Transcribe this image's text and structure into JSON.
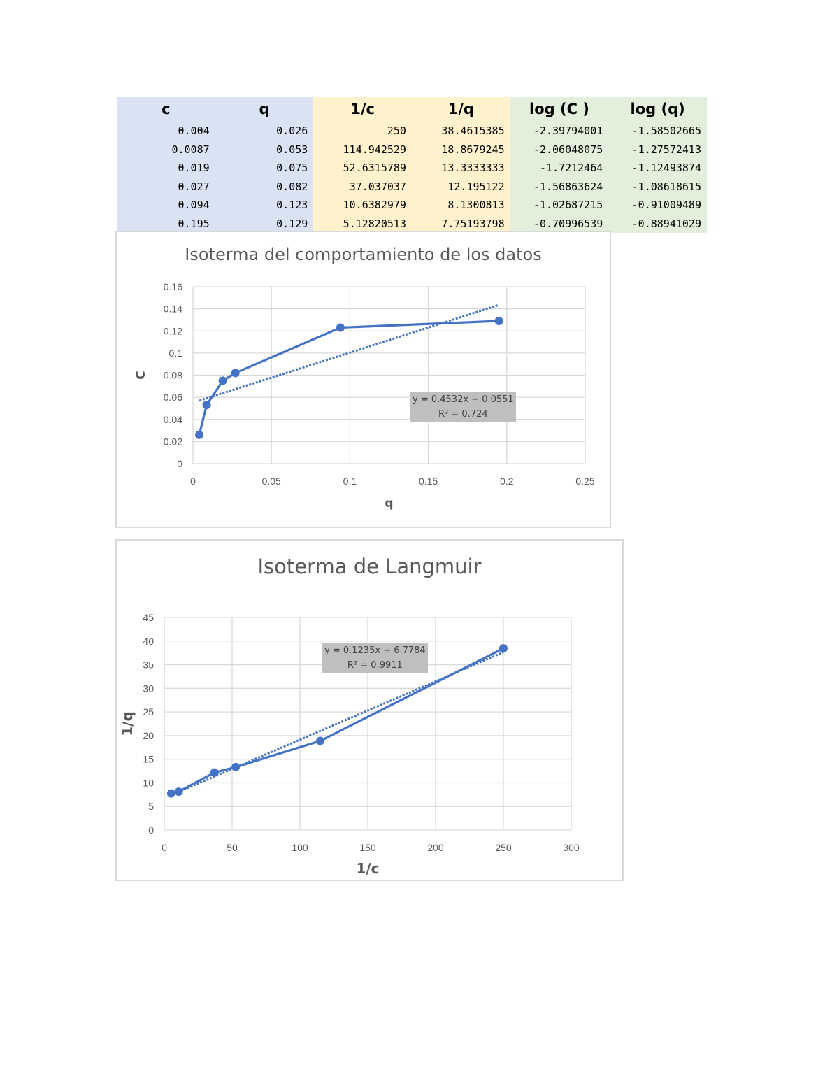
{
  "table": {
    "headers": [
      "c",
      "q",
      "1/c",
      "1/q",
      "log (C )",
      "log (q)"
    ],
    "rows": [
      [
        "0.004",
        "0.026",
        "250",
        "38.4615385",
        "-2.39794001",
        "-1.58502665"
      ],
      [
        "0.0087",
        "0.053",
        "114.942529",
        "18.8679245",
        "-2.06048075",
        "-1.27572413"
      ],
      [
        "0.019",
        "0.075",
        "52.6315789",
        "13.3333333",
        "-1.7212464",
        "-1.12493874"
      ],
      [
        "0.027",
        "0.082",
        "37.037037",
        "12.195122",
        "-1.56863624",
        "-1.08618615"
      ],
      [
        "0.094",
        "0.123",
        "10.6382979",
        "8.1300813",
        "-1.02687215",
        "-0.91009489"
      ],
      [
        "0.195",
        "0.129",
        "5.12820513",
        "7.75193798",
        "-0.70996539",
        "-0.88941029"
      ]
    ],
    "colors": {
      "group1": "#dae3f3",
      "group2": "#fff2cc",
      "group3": "#e2efda"
    }
  },
  "chart_data": [
    {
      "type": "scatter",
      "title": "Isoterma del comportamiento de los datos",
      "xlabel": "q",
      "ylabel": "C",
      "xlim": [
        0,
        0.25
      ],
      "ylim": [
        0,
        0.16
      ],
      "x_ticks": [
        "0",
        "0.05",
        "0.1",
        "0.15",
        "0.2",
        "0.25"
      ],
      "y_ticks": [
        "0",
        "0.02",
        "0.04",
        "0.06",
        "0.08",
        "0.1",
        "0.12",
        "0.14",
        "0.16"
      ],
      "grid": true,
      "series": [
        {
          "x": [
            0.004,
            0.0087,
            0.019,
            0.027,
            0.094,
            0.195
          ],
          "y": [
            0.026,
            0.053,
            0.075,
            0.082,
            0.123,
            0.129
          ],
          "color": "#4472c4"
        }
      ],
      "trendline": {
        "slope": 0.4532,
        "intercept": 0.0551,
        "x_range": [
          0.004,
          0.195
        ],
        "equation": "y = 0.4532x + 0.0551",
        "r2": "R² = 0.724"
      }
    },
    {
      "type": "scatter",
      "title": "Isoterma de Langmuir",
      "xlabel": "1/c",
      "ylabel": "1/q",
      "xlim": [
        0,
        300
      ],
      "ylim": [
        0,
        45
      ],
      "x_ticks": [
        "0",
        "50",
        "100",
        "150",
        "200",
        "250",
        "300"
      ],
      "y_ticks": [
        "0",
        "5",
        "10",
        "15",
        "20",
        "25",
        "30",
        "35",
        "40",
        "45"
      ],
      "grid": true,
      "series": [
        {
          "x": [
            5.12820513,
            10.6382979,
            37.037037,
            52.6315789,
            114.942529,
            250
          ],
          "y": [
            7.75193798,
            8.1300813,
            12.195122,
            13.3333333,
            18.8679245,
            38.4615385
          ],
          "color": "#4472c4"
        }
      ],
      "trendline": {
        "slope": 0.1235,
        "intercept": 6.7784,
        "x_range": [
          5.12820513,
          250
        ],
        "equation": "y = 0.1235x + 6.7784",
        "r2": "R² = 0.9911"
      }
    }
  ]
}
